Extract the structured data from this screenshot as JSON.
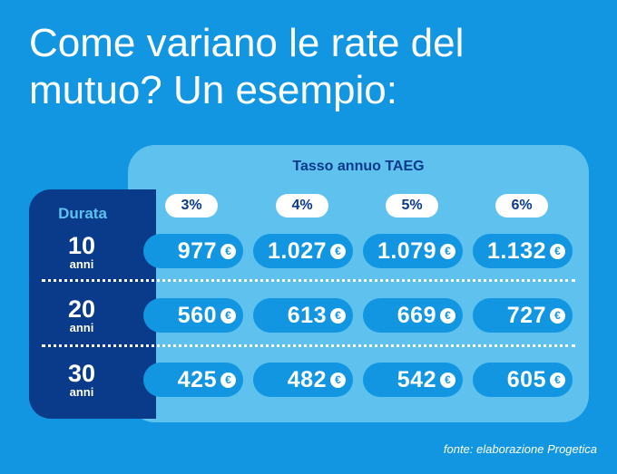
{
  "title": "Come variano le rate del mutuo? Un esempio:",
  "table": {
    "header": "Tasso annuo TAEG",
    "duration_label": "Durata",
    "rates": [
      "3%",
      "4%",
      "5%",
      "6%"
    ],
    "currency": "€",
    "rows": [
      {
        "years": "10",
        "unit": "anni",
        "values": [
          "977",
          "1.027",
          "1.079",
          "1.132"
        ]
      },
      {
        "years": "20",
        "unit": "anni",
        "values": [
          "560",
          "613",
          "669",
          "727"
        ]
      },
      {
        "years": "30",
        "unit": "anni",
        "values": [
          "425",
          "482",
          "542",
          "605"
        ]
      }
    ]
  },
  "source": "fonte: elaborazione Progetica",
  "colors": {
    "background": "#1296e2",
    "panel_light": "#5ec1ee",
    "panel_dark": "#0a3a8a",
    "text_light": "#ffffff"
  }
}
